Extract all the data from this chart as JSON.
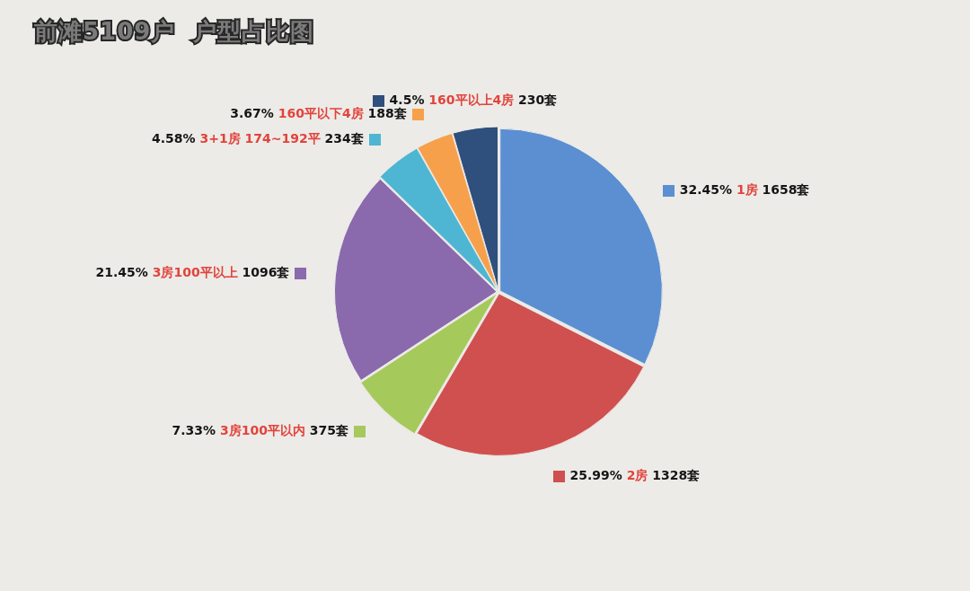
{
  "chart_data": {
    "type": "pie",
    "title": "前滩5109户  户型占比图",
    "categories": [
      "1房",
      "2房",
      "3房100平以内",
      "3房100平以上",
      "3+1房 174~192平",
      "160平以下4房",
      "160平以上4房"
    ],
    "values": [
      1658,
      1328,
      375,
      1096,
      234,
      188,
      230
    ],
    "colors": [
      "#5b8fd1",
      "#d0504f",
      "#a6c95b",
      "#8a69ad",
      "#4eb6d2",
      "#f7a04c",
      "#2f4f7c"
    ],
    "value_labels": [
      "1658套",
      "1328套",
      "375套",
      "1096套",
      "234套",
      "188套",
      "230套"
    ],
    "annotations": [
      {
        "text": "32.45%",
        "x": "1房"
      },
      {
        "text": "25.99%",
        "x": "2房"
      },
      {
        "text": "7.33%",
        "x": "3房100平以内"
      },
      {
        "text": "21.45%",
        "x": "3房100平以上"
      },
      {
        "text": "4.58%",
        "x": "3+1房 174~192平"
      },
      {
        "text": "3.67%",
        "x": "160平以下4房"
      },
      {
        "text": "4.5%",
        "x": "160平以上4房"
      }
    ]
  }
}
